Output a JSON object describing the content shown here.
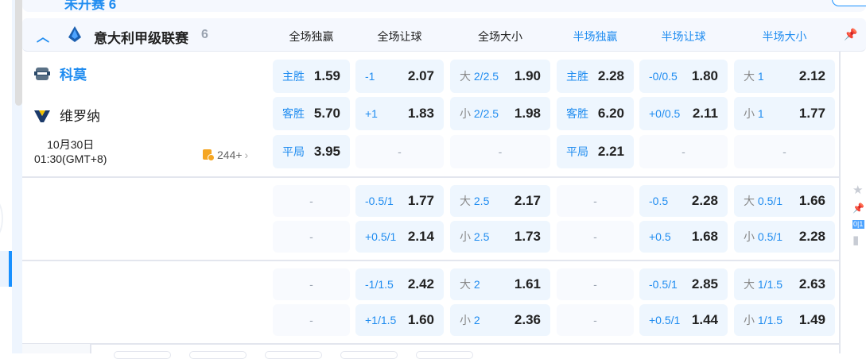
{
  "top": {
    "title": "未开赛 6"
  },
  "league": {
    "name": "意大利甲级联赛",
    "count": "6"
  },
  "columns": {
    "ft_1x2": "全场独赢",
    "ft_hcp": "全场让球",
    "ft_ou": "全场大小",
    "ht_1x2": "半场独赢",
    "ht_hcp": "半场让球",
    "ht_ou": "半场大小"
  },
  "match": {
    "home": "科莫",
    "away": "维罗纳",
    "date": "10月30日",
    "time": "01:30(GMT+8)",
    "markets": "244+"
  },
  "side_icons": {
    "live_badge": "0|1"
  },
  "rows": [
    [
      [
        "主胜",
        "1.59"
      ],
      [
        "-1",
        "2.07"
      ],
      [
        "大 2/2.5",
        "1.90"
      ],
      [
        "主胜",
        "2.28"
      ],
      [
        "-0/0.5",
        "1.80"
      ],
      [
        "大 1",
        "2.12"
      ]
    ],
    [
      [
        "客胜",
        "5.70"
      ],
      [
        "+1",
        "1.83"
      ],
      [
        "小 2/2.5",
        "1.98"
      ],
      [
        "客胜",
        "6.20"
      ],
      [
        "+0/0.5",
        "2.11"
      ],
      [
        "小 1",
        "1.77"
      ]
    ],
    [
      [
        "平局",
        "3.95"
      ],
      [
        "-",
        ""
      ],
      [
        "-",
        ""
      ],
      [
        "平局",
        "2.21"
      ],
      [
        "-",
        ""
      ],
      [
        "-",
        ""
      ]
    ],
    [
      [
        "-",
        ""
      ],
      [
        "-0.5/1",
        "1.77"
      ],
      [
        "大 2.5",
        "2.17"
      ],
      [
        "-",
        ""
      ],
      [
        "-0.5",
        "2.28"
      ],
      [
        "大 0.5/1",
        "1.66"
      ]
    ],
    [
      [
        "-",
        ""
      ],
      [
        "+0.5/1",
        "2.14"
      ],
      [
        "小 2.5",
        "1.73"
      ],
      [
        "-",
        ""
      ],
      [
        "+0.5",
        "1.68"
      ],
      [
        "小 0.5/1",
        "2.28"
      ]
    ],
    [
      [
        "-",
        ""
      ],
      [
        "-1/1.5",
        "2.42"
      ],
      [
        "大 2",
        "1.61"
      ],
      [
        "-",
        ""
      ],
      [
        "-0.5/1",
        "2.85"
      ],
      [
        "大 1/1.5",
        "2.63"
      ]
    ],
    [
      [
        "-",
        ""
      ],
      [
        "+1/1.5",
        "1.60"
      ],
      [
        "小 2",
        "2.36"
      ],
      [
        "-",
        ""
      ],
      [
        "+0.5/1",
        "1.44"
      ],
      [
        "小 1/1.5",
        "1.49"
      ]
    ]
  ]
}
